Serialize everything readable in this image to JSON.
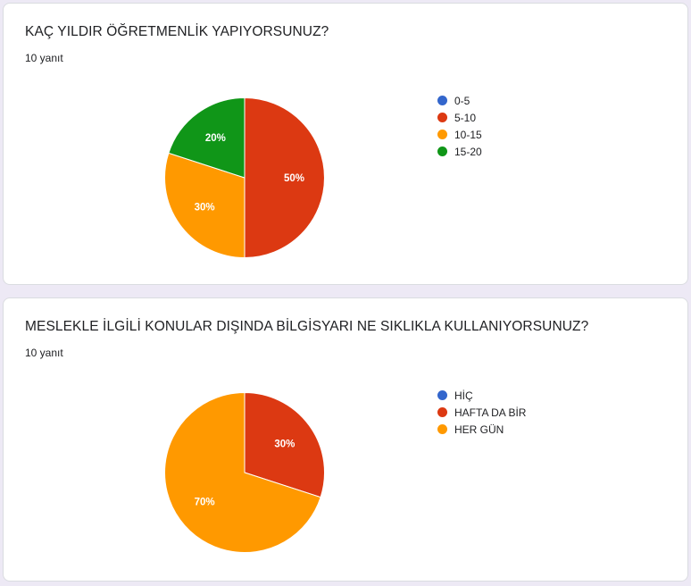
{
  "questions": [
    {
      "title": "KAÇ YILDIR ÖĞRETMENLİK YAPIYORSUNUZ?",
      "response_count": "10 yanıt",
      "chart_data": {
        "type": "pie",
        "categories": [
          "0-5",
          "5-10",
          "10-15",
          "15-20"
        ],
        "values": [
          0,
          50,
          30,
          20
        ],
        "data_labels": [
          "",
          "50%",
          "30%",
          "20%"
        ],
        "colors": [
          "#3366cc",
          "#dc3912",
          "#ff9900",
          "#109618"
        ],
        "legend": "right"
      }
    },
    {
      "title": "MESLEKLE İLGİLİ KONULAR DIŞINDA BİLGİSYARI NE SIKLIKLA KULLANIYORSUNUZ?",
      "response_count": "10 yanıt",
      "chart_data": {
        "type": "pie",
        "categories": [
          "HİÇ",
          "HAFTA DA BİR",
          "HER GÜN"
        ],
        "values": [
          0,
          30,
          70
        ],
        "data_labels": [
          "",
          "30%",
          "70%"
        ],
        "colors": [
          "#3366cc",
          "#dc3912",
          "#ff9900"
        ],
        "legend": "right"
      }
    }
  ]
}
